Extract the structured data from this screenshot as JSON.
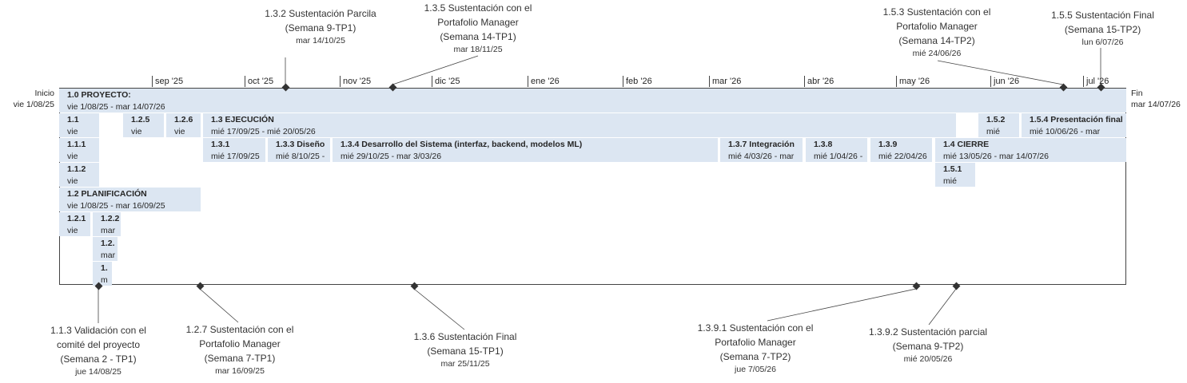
{
  "timeline": {
    "start_label": "Inicio",
    "start_date": "vie 1/08/25",
    "end_label": "Fin",
    "end_date": "mar 14/07/26",
    "months": [
      "sep '25",
      "oct '25",
      "nov '25",
      "dic '25",
      "ene '26",
      "feb '26",
      "mar '26",
      "abr '26",
      "may '26",
      "jun '26",
      "jul '26"
    ]
  },
  "tasks": [
    {
      "title": "1.0 PROYECTO:",
      "dates": "vie 1/08/25 - mar 14/07/26"
    },
    {
      "title": "1.1",
      "dates": "vie"
    },
    {
      "title": "1.2.5",
      "dates": "vie"
    },
    {
      "title": "1.2.6",
      "dates": "vie"
    },
    {
      "title": "1.3 EJECUCIÓN",
      "dates": "mié 17/09/25 - mié 20/05/26"
    },
    {
      "title": "1.5.2",
      "dates": "mié"
    },
    {
      "title": "1.5.4 Presentación final",
      "dates": "mié 10/06/26 - mar"
    },
    {
      "title": "1.1.1",
      "dates": "vie"
    },
    {
      "title": "1.3.1",
      "dates": "mié 17/09/25"
    },
    {
      "title": "1.3.3 Diseño",
      "dates": "mié 8/10/25 -"
    },
    {
      "title": "1.3.4 Desarrollo del Sistema (interfaz, backend, modelos ML)",
      "dates": "mié 29/10/25 - mar 3/03/26"
    },
    {
      "title": "1.3.7 Integración",
      "dates": "mié 4/03/26 - mar"
    },
    {
      "title": "1.3.8",
      "dates": "mié 1/04/26 -"
    },
    {
      "title": "1.3.9",
      "dates": "mié 22/04/26"
    },
    {
      "title": "1.4 CIERRE",
      "dates": "mié 13/05/26 - mar 14/07/26"
    },
    {
      "title": "1.1.2",
      "dates": "vie"
    },
    {
      "title": "1.5.1",
      "dates": "mié"
    },
    {
      "title": "1.2 PLANIFICACIÓN",
      "dates": "vie 1/08/25 - mar 16/09/25"
    },
    {
      "title": "1.2.1",
      "dates": "vie"
    },
    {
      "title": "1.2.2",
      "dates": "mar"
    },
    {
      "title": "1.2.",
      "dates": "mar"
    },
    {
      "title": "1.",
      "dates": "m"
    }
  ],
  "milestones_top": [
    {
      "lines": [
        "1.3.2  Sustentación Parcila",
        "(Semana 9-TP1)"
      ],
      "date": "mar 14/10/25"
    },
    {
      "lines": [
        "1.3.5 Sustentación con el",
        "Portafolio Manager",
        "(Semana 14-TP1)"
      ],
      "date": "mar 18/11/25"
    },
    {
      "lines": [
        "1.5.3 Sustentación con el",
        "Portafolio Manager",
        "(Semana 14-TP2)"
      ],
      "date": "mié 24/06/26"
    },
    {
      "lines": [
        "1.5.5 Sustentación Final",
        "(Semana 15-TP2)"
      ],
      "date": "lun 6/07/26"
    }
  ],
  "milestones_bottom": [
    {
      "lines": [
        "1.1.3 Validación con el",
        "comité del proyecto",
        "(Semana 2 - TP1)"
      ],
      "date": "jue 14/08/25"
    },
    {
      "lines": [
        "1.2.7 Sustentación con el",
        "Portafolio Manager",
        "(Semana 7-TP1)"
      ],
      "date": "mar 16/09/25"
    },
    {
      "lines": [
        "1.3.6 Sustentación Final",
        "(Semana 15-TP1)"
      ],
      "date": "mar 25/11/25"
    },
    {
      "lines": [
        "1.3.9.1 Sustentación con el",
        "Portafolio Manager",
        "(Semana 7-TP2)"
      ],
      "date": "jue 7/05/26"
    },
    {
      "lines": [
        "1.3.9.2 Sustentación parcial",
        "(Semana 9-TP2)"
      ],
      "date": "mié 20/05/26"
    }
  ],
  "colors": {
    "bar": "#dce6f2",
    "line": "#444444",
    "milestone": "#333333"
  }
}
